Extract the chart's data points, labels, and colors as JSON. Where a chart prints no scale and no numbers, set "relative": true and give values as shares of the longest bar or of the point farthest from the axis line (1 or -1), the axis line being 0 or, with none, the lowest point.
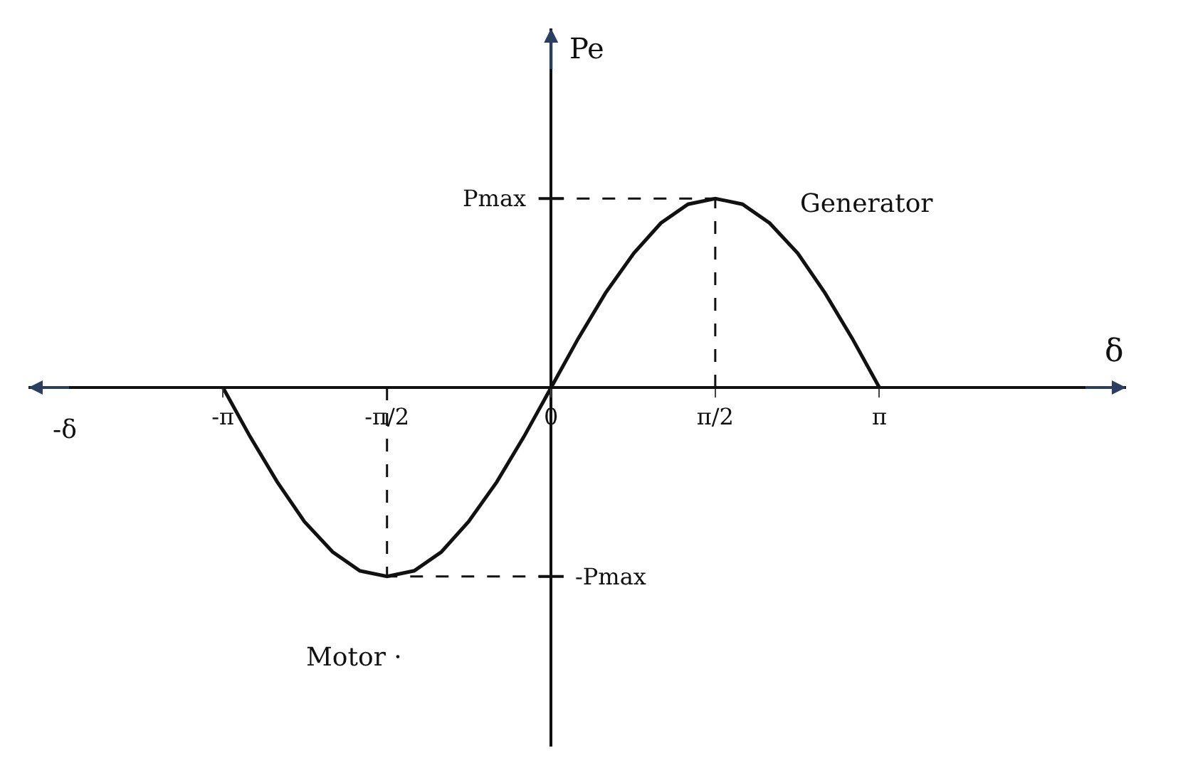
{
  "chart_data": {
    "type": "line",
    "xlabel": "δ",
    "ylabel": "Pe",
    "annotations": [
      "-δ",
      "Generator",
      "Motor ·"
    ],
    "ref_lines": [
      {
        "axis": "y",
        "value": 1,
        "label": "Pmax",
        "line_style": "dashed"
      },
      {
        "axis": "y",
        "value": -1,
        "label": "-Pmax",
        "line_style": "dashed"
      },
      {
        "axis": "x",
        "value": 1.57,
        "line_style": "dashed"
      },
      {
        "axis": "x",
        "value": -1.57,
        "line_style": "dashed"
      }
    ],
    "relative": true,
    "x": [
      -3.14,
      -2.88,
      -2.62,
      -2.36,
      -2.09,
      -1.83,
      -1.57,
      -1.31,
      -1.05,
      -0.79,
      -0.52,
      -0.26,
      0,
      0.26,
      0.52,
      0.79,
      1.05,
      1.31,
      1.57,
      1.83,
      2.09,
      2.36,
      2.62,
      2.88,
      3.14
    ],
    "series": [
      {
        "color": "#111111",
        "values": [
          0,
          -0.26,
          -0.5,
          -0.71,
          -0.87,
          -0.97,
          -1,
          -0.97,
          -0.87,
          -0.71,
          -0.5,
          -0.26,
          0,
          0.26,
          0.5,
          0.71,
          0.87,
          0.97,
          1,
          0.97,
          0.87,
          0.71,
          0.5,
          0.26,
          0
        ]
      }
    ],
    "xlim": [
      -5,
      5.5
    ],
    "xticks": [
      {
        "value": -3.14,
        "label": "-π"
      },
      {
        "value": -1.57,
        "label": "-π/2"
      },
      0,
      {
        "value": 1.57,
        "label": "π/2"
      },
      {
        "value": 3.14,
        "label": "π"
      }
    ],
    "marker": "none",
    "line_style": "solid"
  }
}
